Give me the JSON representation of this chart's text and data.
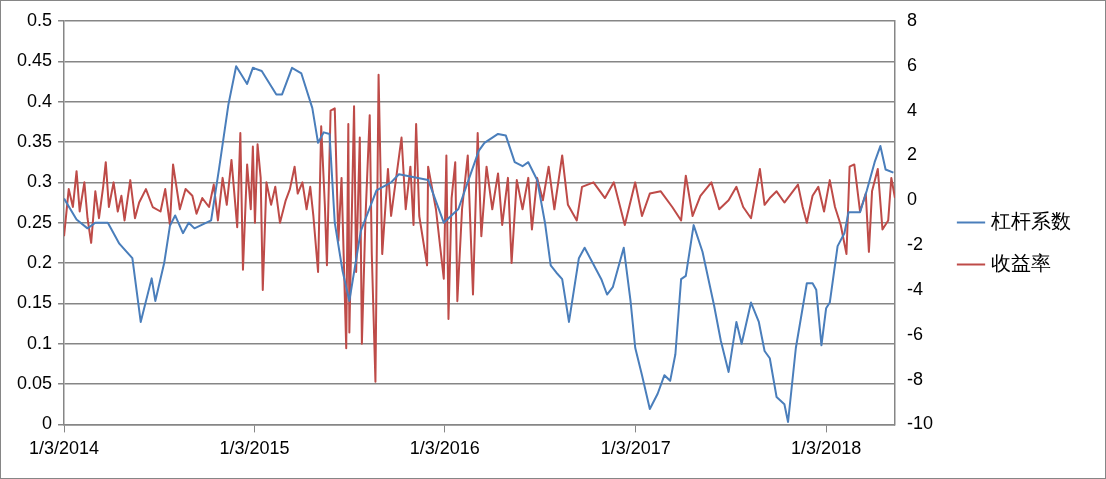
{
  "chart_data": {
    "type": "line",
    "xlim": [
      "2014-01-03",
      "2018-05-15"
    ],
    "xticks": [
      {
        "value": "2014-01-03",
        "label": "1/3/2014"
      },
      {
        "value": "2015-01-03",
        "label": "1/3/2015"
      },
      {
        "value": "2016-01-03",
        "label": "1/3/2016"
      },
      {
        "value": "2017-01-03",
        "label": "1/3/2017"
      },
      {
        "value": "2018-01-03",
        "label": "1/3/2018"
      }
    ],
    "ylim": [
      0,
      0.5
    ],
    "yticks": [
      0,
      0.05,
      0.1,
      0.15,
      0.2,
      0.25,
      0.3,
      0.35,
      0.4,
      0.45,
      0.5
    ],
    "y2lim": [
      -10,
      8
    ],
    "y2ticks": [
      -10,
      -8,
      -6,
      -4,
      -2,
      0,
      2,
      4,
      6,
      8
    ],
    "grid": "y",
    "legend": "right",
    "marker": "none",
    "line_style": "solid",
    "series": [
      {
        "name": "杠杆系数",
        "color": "#4a7ebb",
        "x": [
          "2014-01-03",
          "2014-01-27",
          "2014-02-17",
          "2014-03-04",
          "2014-03-28",
          "2014-04-19",
          "2014-05-14",
          "2014-05-30",
          "2014-06-20",
          "2014-06-27",
          "2014-07-14",
          "2014-07-25",
          "2014-08-04",
          "2014-08-19",
          "2014-08-30",
          "2014-09-10",
          "2014-10-12",
          "2014-10-27",
          "2014-11-14",
          "2014-11-29",
          "2014-12-20",
          "2014-12-31",
          "2015-01-17",
          "2015-02-14",
          "2015-02-25",
          "2015-03-16",
          "2015-04-03",
          "2015-04-24",
          "2015-05-05",
          "2015-05-16",
          "2015-05-27",
          "2015-06-06",
          "2015-06-21",
          "2015-07-04",
          "2015-07-26",
          "2015-08-25",
          "2015-09-22",
          "2015-10-07",
          "2015-12-02",
          "2016-01-01",
          "2016-01-29",
          "2016-03-08",
          "2016-03-19",
          "2016-04-14",
          "2016-04-29",
          "2016-05-16",
          "2016-05-31",
          "2016-06-11",
          "2016-06-28",
          "2016-07-13",
          "2016-07-24",
          "2016-08-04",
          "2016-08-15",
          "2016-08-28",
          "2016-09-16",
          "2016-09-27",
          "2016-10-29",
          "2016-11-09",
          "2016-11-20",
          "2016-12-11",
          "2016-12-24",
          "2017-01-02",
          "2017-01-15",
          "2017-01-30",
          "2017-02-14",
          "2017-02-27",
          "2017-03-10",
          "2017-03-20",
          "2017-03-31",
          "2017-04-09",
          "2017-04-24",
          "2017-05-11",
          "2017-06-02",
          "2017-06-15",
          "2017-06-30",
          "2017-07-15",
          "2017-07-25",
          "2017-08-12",
          "2017-08-27",
          "2017-09-07",
          "2017-09-17",
          "2017-09-30",
          "2017-10-15",
          "2017-10-22",
          "2017-11-06",
          "2017-11-27",
          "2017-12-08",
          "2017-12-15",
          "2017-12-25",
          "2018-01-03",
          "2018-01-10",
          "2018-01-25",
          "2018-02-07",
          "2018-02-15",
          "2018-03-09",
          "2018-03-22",
          "2018-04-06",
          "2018-04-17",
          "2018-04-27",
          "2018-05-12"
        ],
        "values": [
          0.28,
          0.254,
          0.243,
          0.25,
          0.25,
          0.224,
          0.206,
          0.127,
          0.181,
          0.153,
          0.2,
          0.246,
          0.259,
          0.237,
          0.25,
          0.243,
          0.253,
          0.316,
          0.396,
          0.444,
          0.422,
          0.442,
          0.438,
          0.409,
          0.409,
          0.442,
          0.435,
          0.392,
          0.349,
          0.362,
          0.36,
          0.25,
          0.19,
          0.153,
          0.24,
          0.29,
          0.3,
          0.31,
          0.303,
          0.25,
          0.267,
          0.339,
          0.349,
          0.36,
          0.358,
          0.325,
          0.32,
          0.325,
          0.303,
          0.25,
          0.197,
          0.188,
          0.18,
          0.127,
          0.206,
          0.219,
          0.18,
          0.161,
          0.17,
          0.219,
          0.153,
          0.095,
          0.061,
          0.019,
          0.038,
          0.061,
          0.054,
          0.087,
          0.18,
          0.184,
          0.247,
          0.214,
          0.148,
          0.104,
          0.065,
          0.127,
          0.1,
          0.151,
          0.127,
          0.091,
          0.082,
          0.034,
          0.025,
          0.003,
          0.095,
          0.175,
          0.175,
          0.167,
          0.098,
          0.144,
          0.151,
          0.221,
          0.237,
          0.263,
          0.263,
          0.29,
          0.325,
          0.345,
          0.316,
          0.312
        ]
      },
      {
        "name": "收益率",
        "color": "#be4b48",
        "axis": "y2",
        "x": [
          "2014-01-03",
          "2014-01-12",
          "2014-01-20",
          "2014-01-27",
          "2014-02-02",
          "2014-02-11",
          "2014-02-17",
          "2014-02-24",
          "2014-03-04",
          "2014-03-11",
          "2014-03-19",
          "2014-03-24",
          "2014-03-30",
          "2014-04-08",
          "2014-04-16",
          "2014-04-23",
          "2014-04-29",
          "2014-05-10",
          "2014-05-19",
          "2014-05-27",
          "2014-06-09",
          "2014-06-22",
          "2014-07-07",
          "2014-07-16",
          "2014-07-25",
          "2014-07-31",
          "2014-08-13",
          "2014-08-24",
          "2014-09-06",
          "2014-09-14",
          "2014-09-25",
          "2014-10-08",
          "2014-10-17",
          "2014-10-25",
          "2014-11-03",
          "2014-11-11",
          "2014-11-20",
          "2014-12-01",
          "2014-12-07",
          "2014-12-12",
          "2014-12-20",
          "2014-12-27",
          "2014-12-31",
          "2015-01-04",
          "2015-01-09",
          "2015-01-15",
          "2015-01-19",
          "2015-01-26",
          "2015-02-04",
          "2015-02-12",
          "2015-02-21",
          "2015-03-04",
          "2015-03-12",
          "2015-03-21",
          "2015-03-27",
          "2015-04-05",
          "2015-04-13",
          "2015-04-20",
          "2015-04-26",
          "2015-05-05",
          "2015-05-11",
          "2015-05-18",
          "2015-05-22",
          "2015-05-29",
          "2015-06-06",
          "2015-06-13",
          "2015-06-19",
          "2015-06-28",
          "2015-07-02",
          "2015-07-04",
          "2015-07-13",
          "2015-07-17",
          "2015-07-24",
          "2015-07-28",
          "2015-08-04",
          "2015-08-12",
          "2015-08-16",
          "2015-08-23",
          "2015-08-29",
          "2015-09-05",
          "2015-09-16",
          "2015-09-22",
          "2015-10-12",
          "2015-10-20",
          "2015-10-29",
          "2015-11-04",
          "2015-11-09",
          "2015-11-15",
          "2015-11-30",
          "2015-12-02",
          "2015-12-17",
          "2016-01-01",
          "2016-01-06",
          "2016-01-10",
          "2016-01-16",
          "2016-01-23",
          "2016-01-27",
          "2016-02-05",
          "2016-02-16",
          "2016-02-26",
          "2016-03-06",
          "2016-03-13",
          "2016-03-23",
          "2016-04-03",
          "2016-04-14",
          "2016-04-22",
          "2016-05-03",
          "2016-05-10",
          "2016-05-20",
          "2016-05-31",
          "2016-06-11",
          "2016-06-18",
          "2016-06-28",
          "2016-07-09",
          "2016-07-20",
          "2016-07-31",
          "2016-08-15",
          "2016-08-26",
          "2016-09-12",
          "2016-09-22",
          "2016-10-14",
          "2016-11-05",
          "2016-11-22",
          "2016-12-13",
          "2017-01-02",
          "2017-01-15",
          "2017-01-30",
          "2017-02-20",
          "2017-03-14",
          "2017-03-31",
          "2017-04-09",
          "2017-04-22",
          "2017-05-07",
          "2017-05-28",
          "2017-06-12",
          "2017-06-30",
          "2017-07-15",
          "2017-07-28",
          "2017-08-12",
          "2017-08-29",
          "2017-09-07",
          "2017-09-17",
          "2017-09-30",
          "2017-10-15",
          "2017-10-28",
          "2017-11-10",
          "2017-11-19",
          "2017-11-27",
          "2017-12-08",
          "2017-12-19",
          "2017-12-30",
          "2018-01-10",
          "2018-01-20",
          "2018-01-31",
          "2018-02-11",
          "2018-02-17",
          "2018-02-26",
          "2018-03-09",
          "2018-03-20",
          "2018-03-26",
          "2018-04-01",
          "2018-04-12",
          "2018-04-21",
          "2018-05-02",
          "2018-05-08",
          "2018-05-15"
        ],
        "values": [
          -1.6,
          0.5,
          -0.3,
          1.3,
          -0.5,
          0.8,
          -0.8,
          -1.9,
          0.4,
          -0.8,
          0.6,
          1.7,
          -0.3,
          0.8,
          -0.5,
          0.2,
          -0.9,
          0.9,
          -0.8,
          -0.1,
          0.5,
          -0.3,
          -0.5,
          0.5,
          -1.1,
          1.6,
          -0.4,
          0.5,
          0.2,
          -0.6,
          0.1,
          -0.3,
          0.7,
          -0.9,
          1.0,
          -0.2,
          1.8,
          -1.2,
          3.0,
          -3.1,
          1.6,
          -0.4,
          2.4,
          -1.0,
          2.5,
          1.0,
          -4.0,
          0.8,
          -0.2,
          0.6,
          -1.0,
          0.0,
          0.5,
          1.5,
          0.3,
          0.8,
          -0.4,
          0.6,
          -0.7,
          -3.2,
          3.3,
          -0.2,
          -2.9,
          4.0,
          4.1,
          -1.8,
          1.0,
          -6.6,
          3.4,
          -5.9,
          4.2,
          -3.2,
          2.8,
          -6.4,
          -0.7,
          3.8,
          -2.4,
          -8.1,
          5.6,
          -2.4,
          1.4,
          -0.7,
          2.8,
          -0.4,
          1.5,
          -1.1,
          3.4,
          -0.7,
          -2.9,
          1.5,
          -0.4,
          -3.5,
          2.0,
          -5.3,
          0.1,
          1.7,
          -4.5,
          -0.4,
          2.0,
          -4.2,
          3.0,
          -1.6,
          1.5,
          -0.4,
          1.2,
          -1.1,
          1.0,
          -2.8,
          0.9,
          -0.4,
          1.0,
          -1.3,
          1.0,
          0.0,
          1.5,
          -0.4,
          2.0,
          -0.2,
          -0.9,
          0.6,
          0.8,
          0.1,
          0.8,
          -1.1,
          0.8,
          -0.7,
          0.3,
          0.4,
          -0.3,
          -0.9,
          1.1,
          -0.7,
          0.2,
          0.8,
          -0.4,
          0.0,
          0.6,
          -0.3,
          -0.8,
          1.4,
          -0.2,
          0.1,
          0.4,
          -0.1,
          0.3,
          0.7,
          -0.3,
          -1.0,
          0.2,
          0.6,
          -0.5,
          0.9,
          -0.3,
          -1.1,
          -2.4,
          1.5,
          1.6,
          -0.5,
          0.3,
          -2.3,
          0.4,
          1.4,
          -1.3,
          -0.9,
          1.0,
          0.1
        ]
      }
    ]
  }
}
